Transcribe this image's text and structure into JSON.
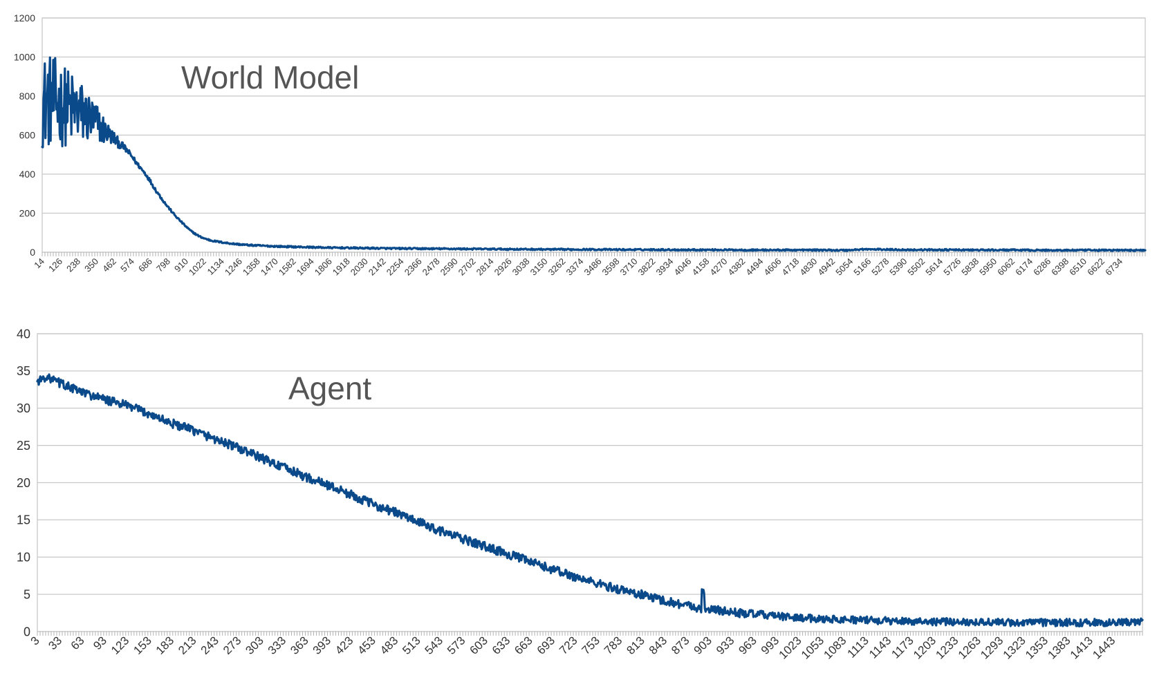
{
  "colors": {
    "series": "#0b4a8a",
    "grid": "#c8c8c8",
    "text": "#333333"
  },
  "chart_data": [
    {
      "type": "line",
      "title": "World Model",
      "xlabel": "",
      "ylabel": "",
      "ylim": [
        0,
        1200
      ],
      "yticks": [
        0,
        200,
        400,
        600,
        800,
        1000,
        1200
      ],
      "xlim": [
        14,
        6846
      ],
      "grid": true,
      "legend": "none",
      "x_tick_labels": [
        "14",
        "126",
        "238",
        "350",
        "462",
        "574",
        "686",
        "798",
        "910",
        "1022",
        "1134",
        "1246",
        "1358",
        "1470",
        "1582",
        "1694",
        "1806",
        "1918",
        "2030",
        "2142",
        "2254",
        "2366",
        "2478",
        "2590",
        "2702",
        "2814",
        "2926",
        "3038",
        "3150",
        "3262",
        "3374",
        "3486",
        "3598",
        "3710",
        "3822",
        "3934",
        "4046",
        "4158",
        "4270",
        "4382",
        "4494",
        "4606",
        "4718",
        "4830",
        "4942",
        "5054",
        "5166",
        "5278",
        "5390",
        "5502",
        "5614",
        "5726",
        "5838",
        "5950",
        "6062",
        "6174",
        "6286",
        "6398",
        "6510",
        "6622",
        "6734"
      ],
      "series": [
        {
          "x": [
            14,
            30,
            60,
            90,
            120,
            150,
            180,
            210,
            240,
            270,
            300,
            330,
            360,
            390,
            420,
            450,
            480,
            510,
            540,
            570,
            600,
            630,
            660,
            690,
            720,
            750,
            780,
            810,
            840,
            870,
            900,
            930,
            960,
            990,
            1020,
            1060,
            1100,
            1150,
            1200,
            1250,
            1300,
            1400,
            1500,
            1600,
            1700,
            1800,
            1900,
            2000,
            2200,
            2400,
            2600,
            2800,
            3000,
            3200,
            3400,
            3600,
            3800,
            4000,
            4200,
            4400,
            4600,
            4800,
            5000,
            5100,
            5200,
            5400,
            5600,
            5800,
            6000,
            6200,
            6400,
            6600,
            6846
          ],
          "mean": [
            760,
            770,
            775,
            770,
            760,
            750,
            740,
            730,
            720,
            705,
            690,
            670,
            655,
            630,
            610,
            590,
            565,
            545,
            520,
            490,
            455,
            425,
            395,
            355,
            315,
            280,
            245,
            215,
            185,
            160,
            135,
            112,
            95,
            80,
            70,
            60,
            54,
            48,
            43,
            39,
            36,
            32,
            29,
            27,
            25,
            23,
            22,
            21,
            19,
            18,
            17,
            16,
            15,
            14,
            14,
            13,
            13,
            12,
            12,
            11,
            11,
            11,
            10,
            15,
            14,
            12,
            12,
            11,
            11,
            10,
            10,
            10,
            10
          ],
          "spread": [
            230,
            240,
            240,
            230,
            220,
            210,
            200,
            190,
            175,
            160,
            140,
            120,
            100,
            80,
            55,
            40,
            28,
            20,
            16,
            14,
            12,
            11,
            10,
            10,
            9,
            8,
            7,
            6,
            5,
            5,
            5,
            4,
            4,
            4,
            4,
            4,
            4,
            4,
            4,
            4,
            4,
            4,
            4,
            4,
            4,
            4,
            4,
            4,
            4,
            4,
            4,
            4,
            4,
            4,
            4,
            4,
            4,
            4,
            4,
            4,
            4,
            4,
            4,
            4,
            4,
            4,
            4,
            4,
            4,
            4,
            4,
            4,
            4
          ]
        }
      ]
    },
    {
      "type": "line",
      "title": "Agent",
      "xlabel": "",
      "ylabel": "",
      "ylim": [
        0,
        40
      ],
      "yticks": [
        0,
        5,
        10,
        15,
        20,
        25,
        30,
        35,
        40
      ],
      "xlim": [
        3,
        1467
      ],
      "grid": true,
      "legend": "none",
      "x_tick_labels": [
        "3",
        "33",
        "63",
        "93",
        "123",
        "153",
        "183",
        "213",
        "243",
        "273",
        "303",
        "333",
        "363",
        "393",
        "423",
        "453",
        "483",
        "513",
        "543",
        "573",
        "603",
        "633",
        "663",
        "693",
        "723",
        "753",
        "783",
        "813",
        "843",
        "873",
        "903",
        "933",
        "963",
        "993",
        "1023",
        "1053",
        "1083",
        "1113",
        "1143",
        "1173",
        "1203",
        "1233",
        "1263",
        "1293",
        "1323",
        "1353",
        "1383",
        "1413",
        "1443"
      ],
      "series": [
        {
          "x": [
            3,
            15,
            30,
            60,
            90,
            120,
            150,
            180,
            210,
            240,
            270,
            300,
            330,
            360,
            390,
            420,
            450,
            480,
            510,
            540,
            570,
            600,
            630,
            660,
            690,
            720,
            750,
            780,
            810,
            840,
            870,
            890,
            910,
            930,
            960,
            990,
            1020,
            1050,
            1080,
            1110,
            1140,
            1170,
            1200,
            1230,
            1260,
            1290,
            1320,
            1350,
            1380,
            1410,
            1440,
            1467
          ],
          "mean": [
            33.6,
            34.2,
            33.5,
            32.2,
            31.2,
            30.4,
            29.3,
            28.0,
            27.0,
            25.8,
            24.6,
            23.3,
            22.0,
            20.7,
            19.6,
            18.3,
            17.0,
            15.9,
            14.6,
            13.4,
            12.3,
            11.3,
            10.3,
            9.2,
            8.2,
            7.2,
            6.3,
            5.5,
            4.8,
            4.0,
            3.4,
            3.0,
            2.8,
            2.5,
            2.3,
            2.0,
            1.8,
            1.7,
            1.6,
            1.5,
            1.4,
            1.4,
            1.3,
            1.3,
            1.3,
            1.2,
            1.2,
            1.2,
            1.2,
            1.2,
            1.2,
            1.3
          ],
          "spread": [
            0.6,
            0.5,
            0.6,
            0.6,
            0.6,
            0.6,
            0.6,
            0.6,
            0.6,
            0.6,
            0.6,
            0.6,
            0.6,
            0.6,
            0.6,
            0.6,
            0.6,
            0.6,
            0.6,
            0.6,
            0.6,
            0.6,
            0.6,
            0.6,
            0.6,
            0.6,
            0.6,
            0.6,
            0.6,
            0.6,
            0.6,
            0.6,
            0.6,
            0.6,
            0.5,
            0.5,
            0.5,
            0.5,
            0.5,
            0.5,
            0.5,
            0.5,
            0.5,
            0.5,
            0.5,
            0.5,
            0.5,
            0.5,
            0.5,
            0.5,
            0.5,
            0.5
          ]
        }
      ]
    }
  ]
}
